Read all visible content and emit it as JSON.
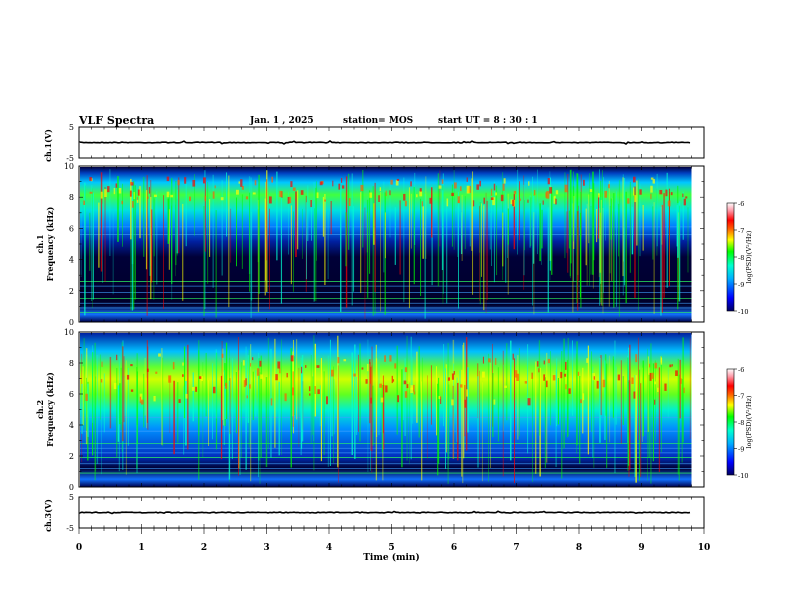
{
  "header": {
    "title": "VLF Spectra",
    "date": "Jan. 1 , 2025",
    "station": "station= MOS",
    "start": "start UT = 8 : 30 : 1"
  },
  "colors": {
    "cmap": [
      "#000060",
      "#0000ff",
      "#00b0ff",
      "#00ffd0",
      "#00ff00",
      "#ffff00",
      "#ff6000",
      "#ff0000",
      "#ff9aa8",
      "#ffffff"
    ]
  },
  "chart_data": [
    {
      "type": "line",
      "name": "ch1-waveform",
      "ylabel": "ch.1(V)",
      "ylim": [
        -5,
        5
      ],
      "yticks": [
        "5",
        "-5"
      ],
      "x_range_min": [
        0,
        10
      ],
      "baseline_value": 0
    },
    {
      "type": "heatmap",
      "name": "ch1-spectrogram",
      "ylabel": "ch.1\nFrequency (kHz)",
      "ylabel_lines": [
        "ch.1",
        "Frequency (kHz)"
      ],
      "ylim": [
        0,
        10
      ],
      "yticks": [
        "0",
        "2",
        "4",
        "6",
        "8",
        "10"
      ],
      "colorbar": {
        "label": "log(PSD)(V²/Hz)",
        "range": [
          -10,
          -6
        ],
        "ticks": [
          "-6",
          "-7",
          "-8",
          "-9",
          "-10"
        ]
      }
    },
    {
      "type": "heatmap",
      "name": "ch2-spectrogram",
      "ylabel": "ch.2\nFrequency (kHz)",
      "ylabel_lines": [
        "ch.2",
        "Frequency (kHz)"
      ],
      "ylim": [
        0,
        10
      ],
      "yticks": [
        "0",
        "2",
        "4",
        "6",
        "8",
        "10"
      ],
      "colorbar": {
        "label": "log(PSD)(V²/Hz)",
        "range": [
          -10,
          -6
        ],
        "ticks": [
          "-6",
          "-7",
          "-8",
          "-9",
          "-10"
        ]
      }
    },
    {
      "type": "line",
      "name": "ch3-waveform",
      "ylabel": "ch.3(V)",
      "ylim": [
        -5,
        5
      ],
      "yticks": [
        "5",
        "-5"
      ],
      "baseline_value": 0
    }
  ],
  "xaxis": {
    "label": "Time (min)",
    "range": [
      0,
      10
    ],
    "ticks": [
      "0",
      "1",
      "2",
      "3",
      "4",
      "5",
      "6",
      "7",
      "8",
      "9",
      "10"
    ],
    "data_end_min": 9.8
  }
}
